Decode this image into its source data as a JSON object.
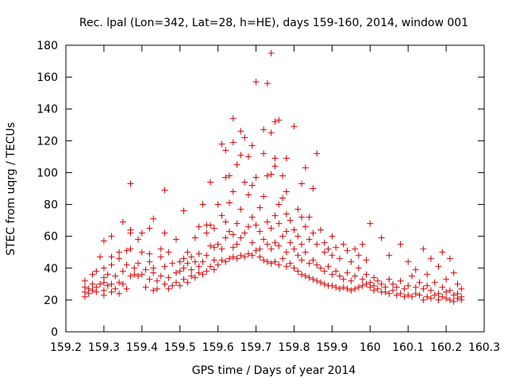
{
  "chart_data": {
    "type": "scatter",
    "title": "Rec. lpal (Lon=342, Lat=28, h=HE), days 159-160, 2014, window 001",
    "xlabel": "GPS time / Days of year 2014",
    "ylabel": "STEC from uqrg / TECUs",
    "xlim": [
      159.2,
      160.3
    ],
    "ylim": [
      0,
      180
    ],
    "xticks": [
      159.2,
      159.3,
      159.4,
      159.5,
      159.6,
      159.7,
      159.8,
      159.9,
      160,
      160.1,
      160.2,
      160.3
    ],
    "xtick_labels": [
      "159.2",
      "159.3",
      "159.4",
      "159.5",
      "159.6",
      "159.7",
      "159.8",
      "159.9",
      "160",
      "160.1",
      "160.2",
      "160.3"
    ],
    "yticks": [
      0,
      20,
      40,
      60,
      80,
      100,
      120,
      140,
      160,
      180
    ],
    "ytick_labels": [
      "0",
      "20",
      "40",
      "60",
      "80",
      "100",
      "120",
      "140",
      "160",
      "180"
    ],
    "marker": "+",
    "color": "#d00000",
    "grid": false,
    "legend": "none",
    "points": [
      [
        159.25,
        22
      ],
      [
        159.25,
        25
      ],
      [
        159.25,
        28
      ],
      [
        159.25,
        32
      ],
      [
        159.26,
        24
      ],
      [
        159.26,
        27
      ],
      [
        159.27,
        26
      ],
      [
        159.27,
        30
      ],
      [
        159.27,
        36
      ],
      [
        159.28,
        25
      ],
      [
        159.28,
        28
      ],
      [
        159.28,
        38
      ],
      [
        159.29,
        30
      ],
      [
        159.29,
        47
      ],
      [
        159.3,
        23
      ],
      [
        159.3,
        26
      ],
      [
        159.3,
        31
      ],
      [
        159.3,
        34
      ],
      [
        159.3,
        40
      ],
      [
        159.3,
        57
      ],
      [
        159.31,
        29
      ],
      [
        159.31,
        36
      ],
      [
        159.32,
        25
      ],
      [
        159.32,
        30
      ],
      [
        159.32,
        42
      ],
      [
        159.32,
        47
      ],
      [
        159.32,
        60
      ],
      [
        159.33,
        27
      ],
      [
        159.33,
        35
      ],
      [
        159.34,
        24
      ],
      [
        159.34,
        31
      ],
      [
        159.34,
        46
      ],
      [
        159.34,
        50
      ],
      [
        159.35,
        30
      ],
      [
        159.35,
        38
      ],
      [
        159.35,
        69
      ],
      [
        159.36,
        27
      ],
      [
        159.36,
        42
      ],
      [
        159.36,
        51
      ],
      [
        159.37,
        35
      ],
      [
        159.37,
        52
      ],
      [
        159.37,
        62
      ],
      [
        159.37,
        64
      ],
      [
        159.37,
        93
      ],
      [
        159.38,
        36
      ],
      [
        159.38,
        40
      ],
      [
        159.39,
        35
      ],
      [
        159.39,
        43
      ],
      [
        159.39,
        58
      ],
      [
        159.4,
        36
      ],
      [
        159.4,
        50
      ],
      [
        159.4,
        62
      ],
      [
        159.41,
        39
      ],
      [
        159.41,
        28
      ],
      [
        159.42,
        33
      ],
      [
        159.42,
        44
      ],
      [
        159.42,
        49
      ],
      [
        159.42,
        65
      ],
      [
        159.43,
        26
      ],
      [
        159.43,
        37
      ],
      [
        159.43,
        40
      ],
      [
        159.43,
        71
      ],
      [
        159.44,
        32
      ],
      [
        159.44,
        27
      ],
      [
        159.45,
        35
      ],
      [
        159.45,
        47
      ],
      [
        159.45,
        52
      ],
      [
        159.46,
        30
      ],
      [
        159.46,
        41
      ],
      [
        159.46,
        62
      ],
      [
        159.46,
        89
      ],
      [
        159.47,
        27
      ],
      [
        159.47,
        34
      ],
      [
        159.47,
        50
      ],
      [
        159.48,
        29
      ],
      [
        159.48,
        43
      ],
      [
        159.49,
        31
      ],
      [
        159.49,
        37
      ],
      [
        159.49,
        58
      ],
      [
        159.5,
        29
      ],
      [
        159.5,
        38
      ],
      [
        159.5,
        44
      ],
      [
        159.51,
        33
      ],
      [
        159.51,
        40
      ],
      [
        159.51,
        46
      ],
      [
        159.51,
        76
      ],
      [
        159.52,
        31
      ],
      [
        159.52,
        43
      ],
      [
        159.52,
        50
      ],
      [
        159.53,
        35
      ],
      [
        159.53,
        39
      ],
      [
        159.53,
        47
      ],
      [
        159.54,
        34
      ],
      [
        159.54,
        44
      ],
      [
        159.54,
        59
      ],
      [
        159.55,
        37
      ],
      [
        159.55,
        41
      ],
      [
        159.55,
        49
      ],
      [
        159.55,
        66
      ],
      [
        159.56,
        36
      ],
      [
        159.56,
        44
      ],
      [
        159.56,
        80
      ],
      [
        159.57,
        38
      ],
      [
        159.57,
        48
      ],
      [
        159.57,
        62
      ],
      [
        159.57,
        67
      ],
      [
        159.58,
        41
      ],
      [
        159.58,
        54
      ],
      [
        159.58,
        67
      ],
      [
        159.58,
        94
      ],
      [
        159.59,
        39
      ],
      [
        159.59,
        45
      ],
      [
        159.59,
        53
      ],
      [
        159.59,
        65
      ],
      [
        159.6,
        42
      ],
      [
        159.6,
        55
      ],
      [
        159.6,
        80
      ],
      [
        159.61,
        45
      ],
      [
        159.61,
        52
      ],
      [
        159.61,
        73
      ],
      [
        159.61,
        118
      ],
      [
        159.62,
        44
      ],
      [
        159.62,
        59
      ],
      [
        159.62,
        69
      ],
      [
        159.62,
        97
      ],
      [
        159.62,
        114
      ],
      [
        159.63,
        46
      ],
      [
        159.63,
        63
      ],
      [
        159.63,
        81
      ],
      [
        159.63,
        98
      ],
      [
        159.64,
        47
      ],
      [
        159.64,
        53
      ],
      [
        159.64,
        61
      ],
      [
        159.64,
        88
      ],
      [
        159.64,
        119
      ],
      [
        159.64,
        134
      ],
      [
        159.65,
        46
      ],
      [
        159.65,
        55
      ],
      [
        159.65,
        68
      ],
      [
        159.65,
        105
      ],
      [
        159.66,
        48
      ],
      [
        159.66,
        59
      ],
      [
        159.66,
        77
      ],
      [
        159.66,
        126
      ],
      [
        159.66,
        111
      ],
      [
        159.67,
        47
      ],
      [
        159.67,
        62
      ],
      [
        159.67,
        94
      ],
      [
        159.67,
        122
      ],
      [
        159.68,
        49
      ],
      [
        159.68,
        66
      ],
      [
        159.68,
        86
      ],
      [
        159.68,
        110
      ],
      [
        159.69,
        48
      ],
      [
        159.69,
        56
      ],
      [
        159.69,
        72
      ],
      [
        159.69,
        92
      ],
      [
        159.69,
        117
      ],
      [
        159.7,
        51
      ],
      [
        159.7,
        67
      ],
      [
        159.7,
        97
      ],
      [
        159.7,
        157
      ],
      [
        159.71,
        47
      ],
      [
        159.71,
        52
      ],
      [
        159.71,
        63
      ],
      [
        159.71,
        78
      ],
      [
        159.72,
        45
      ],
      [
        159.72,
        58
      ],
      [
        159.72,
        85
      ],
      [
        159.72,
        127
      ],
      [
        159.72,
        112
      ],
      [
        159.73,
        44
      ],
      [
        159.73,
        55
      ],
      [
        159.73,
        69
      ],
      [
        159.73,
        98
      ],
      [
        159.73,
        156
      ],
      [
        159.74,
        43
      ],
      [
        159.74,
        52
      ],
      [
        159.74,
        65
      ],
      [
        159.74,
        99
      ],
      [
        159.74,
        125
      ],
      [
        159.74,
        175
      ],
      [
        159.75,
        44
      ],
      [
        159.75,
        56
      ],
      [
        159.75,
        73
      ],
      [
        159.75,
        104
      ],
      [
        159.75,
        109
      ],
      [
        159.75,
        132
      ],
      [
        159.76,
        42
      ],
      [
        159.76,
        54
      ],
      [
        159.76,
        68
      ],
      [
        159.76,
        80
      ],
      [
        159.76,
        133
      ],
      [
        159.77,
        46
      ],
      [
        159.77,
        60
      ],
      [
        159.77,
        84
      ],
      [
        159.77,
        98
      ],
      [
        159.78,
        41
      ],
      [
        159.78,
        50
      ],
      [
        159.78,
        63
      ],
      [
        159.78,
        74
      ],
      [
        159.78,
        88
      ],
      [
        159.78,
        109
      ],
      [
        159.79,
        43
      ],
      [
        159.79,
        56
      ],
      [
        159.79,
        70
      ],
      [
        159.8,
        40
      ],
      [
        159.8,
        52
      ],
      [
        159.8,
        64
      ],
      [
        159.8,
        129
      ],
      [
        159.81,
        38
      ],
      [
        159.81,
        48
      ],
      [
        159.81,
        60
      ],
      [
        159.81,
        77
      ],
      [
        159.82,
        36
      ],
      [
        159.82,
        45
      ],
      [
        159.82,
        55
      ],
      [
        159.82,
        72
      ],
      [
        159.82,
        93
      ],
      [
        159.83,
        35
      ],
      [
        159.83,
        50
      ],
      [
        159.83,
        66
      ],
      [
        159.83,
        103
      ],
      [
        159.84,
        34
      ],
      [
        159.84,
        43
      ],
      [
        159.84,
        58
      ],
      [
        159.84,
        72
      ],
      [
        159.85,
        33
      ],
      [
        159.85,
        45
      ],
      [
        159.85,
        62
      ],
      [
        159.85,
        90
      ],
      [
        159.86,
        32
      ],
      [
        159.86,
        42
      ],
      [
        159.86,
        55
      ],
      [
        159.86,
        112
      ],
      [
        159.87,
        31
      ],
      [
        159.87,
        40
      ],
      [
        159.87,
        64
      ],
      [
        159.88,
        30
      ],
      [
        159.88,
        38
      ],
      [
        159.88,
        50
      ],
      [
        159.88,
        56
      ],
      [
        159.89,
        29
      ],
      [
        159.89,
        41
      ],
      [
        159.89,
        52
      ],
      [
        159.9,
        29
      ],
      [
        159.9,
        36
      ],
      [
        159.9,
        48
      ],
      [
        159.9,
        60
      ],
      [
        159.91,
        28
      ],
      [
        159.91,
        38
      ],
      [
        159.91,
        53
      ],
      [
        159.92,
        27
      ],
      [
        159.92,
        35
      ],
      [
        159.92,
        46
      ],
      [
        159.93,
        28
      ],
      [
        159.93,
        33
      ],
      [
        159.93,
        55
      ],
      [
        159.94,
        27
      ],
      [
        159.94,
        37
      ],
      [
        159.94,
        51
      ],
      [
        159.95,
        26
      ],
      [
        159.95,
        32
      ],
      [
        159.95,
        44
      ],
      [
        159.96,
        27
      ],
      [
        159.96,
        35
      ],
      [
        159.96,
        52
      ],
      [
        159.97,
        28
      ],
      [
        159.97,
        40
      ],
      [
        159.97,
        48
      ],
      [
        159.98,
        29
      ],
      [
        159.98,
        33
      ],
      [
        159.98,
        55
      ],
      [
        159.99,
        30
      ],
      [
        159.99,
        36
      ],
      [
        159.99,
        45
      ],
      [
        160.0,
        28
      ],
      [
        160.0,
        31
      ],
      [
        160.0,
        68
      ],
      [
        160.01,
        26
      ],
      [
        160.01,
        29
      ],
      [
        160.01,
        34
      ],
      [
        160.02,
        27
      ],
      [
        160.02,
        32
      ],
      [
        160.03,
        25
      ],
      [
        160.03,
        30
      ],
      [
        160.03,
        59
      ],
      [
        160.04,
        25
      ],
      [
        160.04,
        28
      ],
      [
        160.05,
        24
      ],
      [
        160.05,
        33
      ],
      [
        160.05,
        48
      ],
      [
        160.06,
        26
      ],
      [
        160.06,
        30
      ],
      [
        160.07,
        23
      ],
      [
        160.07,
        28
      ],
      [
        160.08,
        24
      ],
      [
        160.08,
        32
      ],
      [
        160.08,
        55
      ],
      [
        160.09,
        22
      ],
      [
        160.09,
        27
      ],
      [
        160.1,
        23
      ],
      [
        160.1,
        29
      ],
      [
        160.1,
        44
      ],
      [
        160.11,
        22
      ],
      [
        160.11,
        35
      ],
      [
        160.12,
        24
      ],
      [
        160.12,
        28
      ],
      [
        160.12,
        39
      ],
      [
        160.13,
        23
      ],
      [
        160.13,
        31
      ],
      [
        160.14,
        20
      ],
      [
        160.14,
        27
      ],
      [
        160.14,
        52
      ],
      [
        160.15,
        22
      ],
      [
        160.15,
        29
      ],
      [
        160.15,
        36
      ],
      [
        160.16,
        21
      ],
      [
        160.16,
        26
      ],
      [
        160.16,
        46
      ],
      [
        160.17,
        23
      ],
      [
        160.17,
        31
      ],
      [
        160.18,
        20
      ],
      [
        160.18,
        24
      ],
      [
        160.18,
        41
      ],
      [
        160.19,
        22
      ],
      [
        160.19,
        28
      ],
      [
        160.19,
        50
      ],
      [
        160.2,
        21
      ],
      [
        160.2,
        25
      ],
      [
        160.2,
        33
      ],
      [
        160.21,
        20
      ],
      [
        160.21,
        26
      ],
      [
        160.21,
        46
      ],
      [
        160.22,
        19
      ],
      [
        160.22,
        23
      ],
      [
        160.22,
        37
      ],
      [
        160.23,
        21
      ],
      [
        160.23,
        24
      ],
      [
        160.23,
        30
      ],
      [
        160.24,
        20
      ],
      [
        160.24,
        22
      ],
      [
        160.24,
        27
      ]
    ]
  }
}
